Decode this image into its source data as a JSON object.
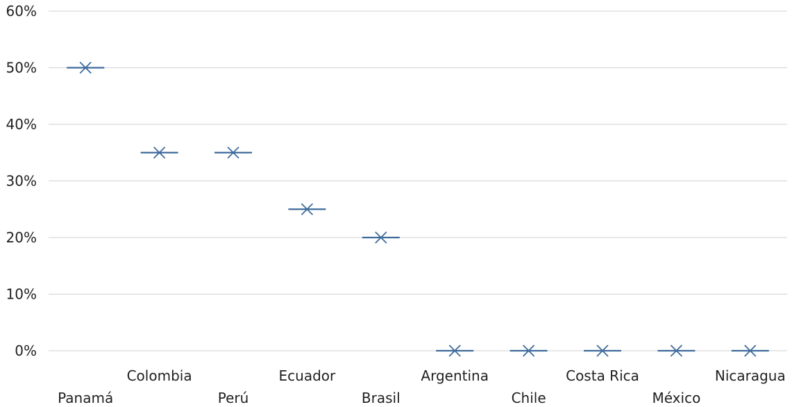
{
  "chart_data": {
    "type": "scatter",
    "categories": [
      "Panamá",
      "Colombia",
      "Perú",
      "Ecuador",
      "Brasil",
      "Argentina",
      "Chile",
      "Costa Rica",
      "México",
      "Nicaragua"
    ],
    "values": [
      0.5,
      0.35,
      0.35,
      0.25,
      0.2,
      0,
      0,
      0,
      0,
      0
    ],
    "ylim": [
      0,
      0.6
    ],
    "yticks": [
      0,
      0.1,
      0.2,
      0.3,
      0.4,
      0.5,
      0.6
    ],
    "ytick_labels": [
      "0%",
      "10%",
      "20%",
      "30%",
      "40%",
      "50%",
      "60%"
    ],
    "grid": true,
    "legend": "none",
    "marker": "x-with-horizontal-bar",
    "series_color": "#3e6a9c",
    "grid_color": "#d9d9d9"
  }
}
